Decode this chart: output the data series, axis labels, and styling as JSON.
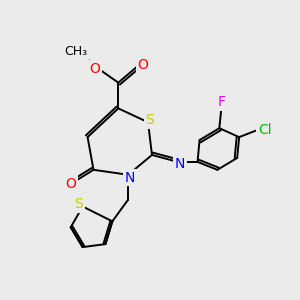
{
  "bg_color": "#ebebeb",
  "atom_colors": {
    "S": "#cccc00",
    "N": "#0000ff",
    "O": "#ff0000",
    "Cl": "#00bb00",
    "F": "#ee00ee",
    "C": "#000000"
  },
  "bond_color": "#000000",
  "bond_lw": 1.4,
  "font_size": 10
}
